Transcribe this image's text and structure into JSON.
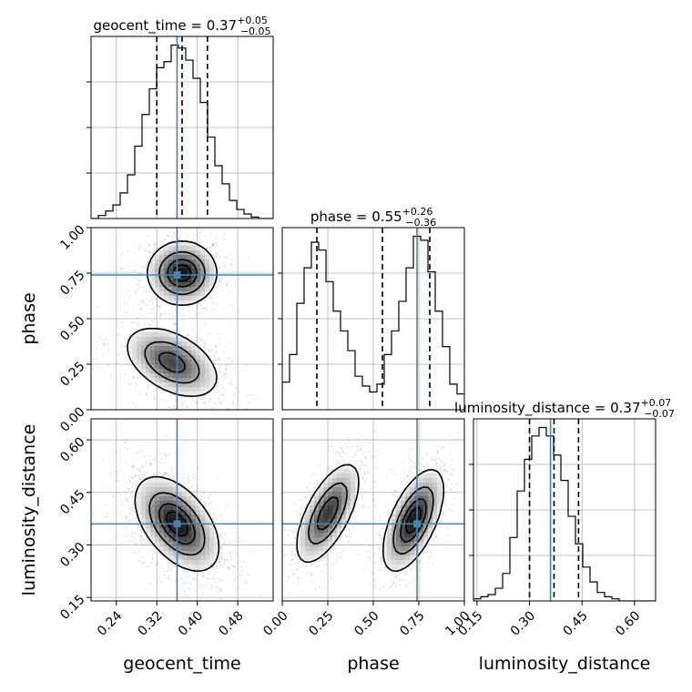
{
  "chart_data": {
    "type": "corner",
    "parameters": [
      {
        "key": "geocent_time",
        "label": "geocent_time",
        "range": [
          0.19,
          0.55
        ],
        "ticks": [
          0.24,
          0.32,
          0.4,
          0.48
        ],
        "tick_labels": [
          "0.24",
          "0.32",
          "0.40",
          "0.48"
        ],
        "truth": 0.36
      },
      {
        "key": "phase",
        "label": "phase",
        "range": [
          0.0,
          1.0
        ],
        "ticks": [
          0.0,
          0.25,
          0.5,
          0.75,
          1.0
        ],
        "tick_labels": [
          "0.00",
          "0.25",
          "0.50",
          "0.75",
          "1.00"
        ],
        "truth": 0.74
      },
      {
        "key": "luminosity_distance",
        "label": "luminosity_distance",
        "range": [
          0.14,
          0.66
        ],
        "ticks": [
          0.15,
          0.3,
          0.45,
          0.6
        ],
        "tick_labels": [
          "0.15",
          "0.30",
          "0.45",
          "0.60"
        ],
        "truth": 0.36
      }
    ],
    "titles": [
      {
        "main": "geocent_time = 0.37",
        "upper": "+0.05",
        "lower": "−0.05"
      },
      {
        "main": "phase = 0.55",
        "upper": "+0.26",
        "lower": "−0.36"
      },
      {
        "main": "luminosity_distance = 0.37",
        "upper": "+0.07",
        "lower": "−0.07"
      }
    ],
    "quantiles": {
      "geocent_time": [
        0.32,
        0.37,
        0.42
      ],
      "phase": [
        0.19,
        0.55,
        0.81
      ],
      "luminosity_distance": [
        0.3,
        0.37,
        0.44
      ]
    },
    "histograms": {
      "geocent_time": {
        "bin_start": 0.19,
        "bin_width": 0.0144,
        "counts": [
          0,
          2,
          5,
          9,
          17,
          29,
          48,
          69,
          86,
          100,
          104,
          115,
          113,
          105,
          93,
          77,
          54,
          35,
          23,
          12,
          6,
          3,
          1,
          0,
          0
        ]
      },
      "phase": {
        "bin_start": 0.0,
        "bin_width": 0.04,
        "counts": [
          14,
          28,
          54,
          72,
          85,
          81,
          65,
          50,
          40,
          30,
          17,
          12,
          9,
          13,
          28,
          40,
          55,
          72,
          88,
          86,
          70,
          50,
          32,
          13,
          8
        ]
      },
      "luminosity_distance": {
        "bin_start": 0.14,
        "bin_width": 0.0208,
        "counts": [
          1,
          2,
          3,
          6,
          13,
          30,
          52,
          67,
          78,
          82,
          78,
          69,
          57,
          40,
          27,
          16,
          9,
          4,
          2,
          1,
          0,
          0,
          0,
          0,
          0
        ]
      }
    },
    "joint_2d": [
      {
        "x": "geocent_time",
        "y": "phase",
        "modes": [
          {
            "cx": 0.37,
            "cy": 0.75,
            "sx": 0.033,
            "sy": 0.085,
            "rho": 0.0,
            "w": 1.0
          },
          {
            "cx": 0.35,
            "cy": 0.26,
            "sx": 0.045,
            "sy": 0.095,
            "rho": -0.45,
            "w": 0.8
          }
        ]
      },
      {
        "x": "geocent_time",
        "y": "luminosity_distance",
        "modes": [
          {
            "cx": 0.36,
            "cy": 0.36,
            "sx": 0.04,
            "sy": 0.065,
            "rho": -0.5,
            "w": 1.0
          }
        ]
      },
      {
        "x": "phase",
        "y": "luminosity_distance",
        "modes": [
          {
            "cx": 0.25,
            "cy": 0.39,
            "sx": 0.085,
            "sy": 0.07,
            "rho": 0.65,
            "w": 0.85
          },
          {
            "cx": 0.72,
            "cy": 0.37,
            "sx": 0.08,
            "sy": 0.07,
            "rho": 0.6,
            "w": 1.0
          }
        ]
      }
    ],
    "contour_levels": [
      0.118,
      0.393,
      0.675,
      0.865
    ],
    "grid": true,
    "colors": {
      "truth": "#4682b4",
      "contour": "#000000",
      "hist": "#000000",
      "points": "#808080",
      "grid": "#b0b0b0"
    }
  }
}
